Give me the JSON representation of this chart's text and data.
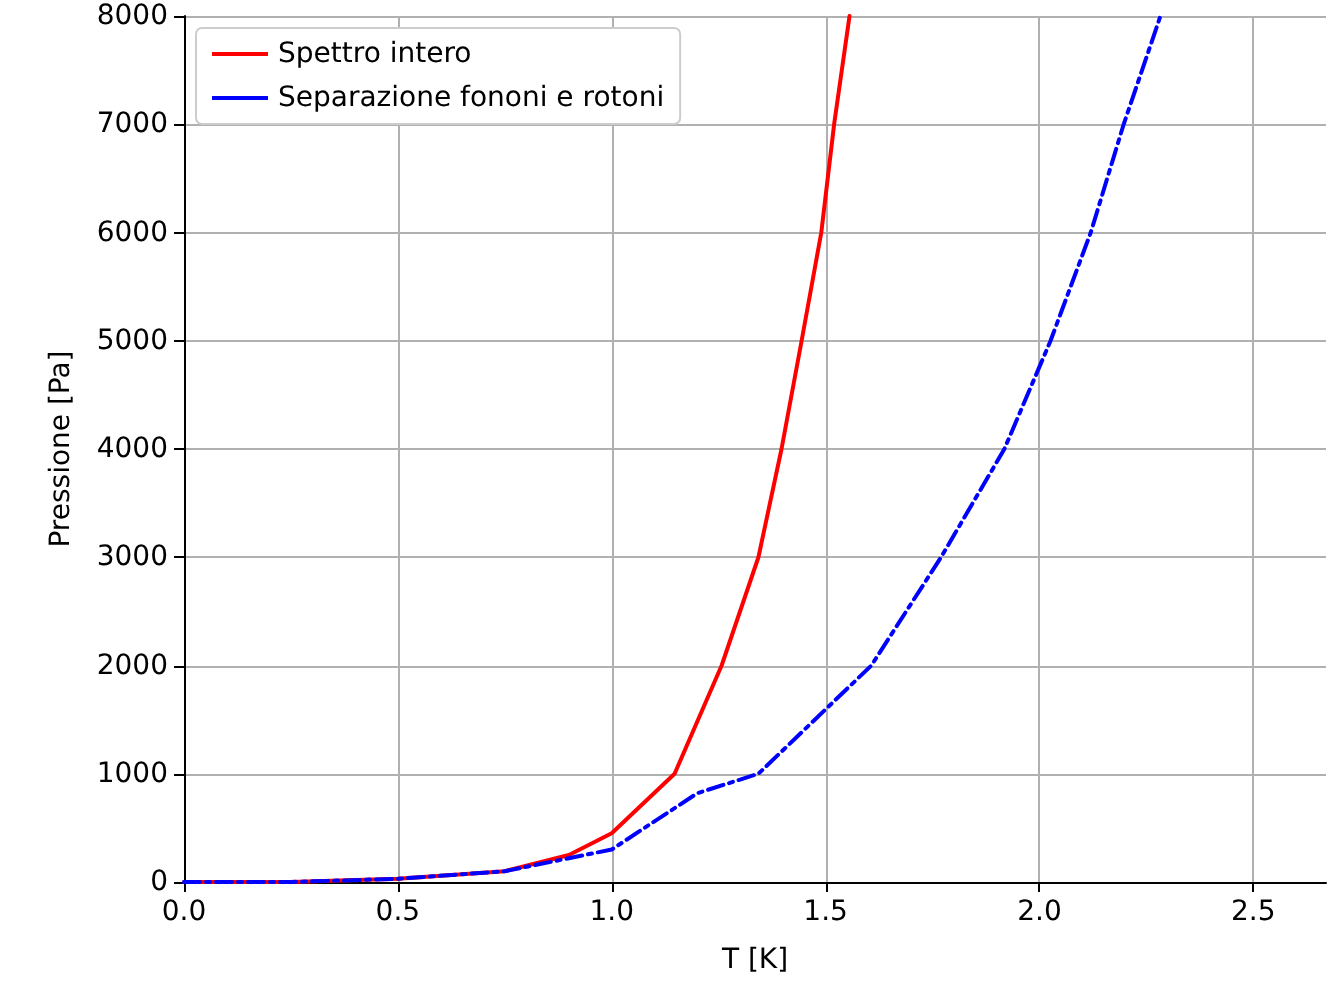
{
  "chart_data": {
    "type": "line",
    "xlabel": "T [K]",
    "ylabel": "Pressione [Pa]",
    "xlim": [
      0,
      2.67
    ],
    "ylim": [
      0,
      8000
    ],
    "xticks": [
      {
        "value": 0,
        "label": "0.0"
      },
      {
        "value": 0.5,
        "label": "0.5"
      },
      {
        "value": 1,
        "label": "1.0"
      },
      {
        "value": 1.5,
        "label": "1.5"
      },
      {
        "value": 2,
        "label": "2.0"
      },
      {
        "value": 2.5,
        "label": "2.5"
      }
    ],
    "yticks": [
      0,
      1000,
      2000,
      3000,
      4000,
      5000,
      6000,
      7000,
      8000
    ],
    "grid": true,
    "legend": "top left",
    "marker": "none",
    "series": [
      {
        "name": "Spettro intero",
        "color": "#ff0000",
        "line_style": "solid",
        "x": [
          0,
          0.25,
          0.5,
          0.75,
          0.9,
          1.0,
          1.147,
          1.257,
          1.343,
          1.397,
          1.444,
          1.49,
          1.52,
          1.556
        ],
        "values": [
          0,
          0,
          30,
          100,
          250,
          450,
          1000,
          2000,
          3000,
          4000,
          5000,
          6000,
          7000,
          8000
        ]
      },
      {
        "name": "Separazione fononi e rotoni",
        "color": "#0000ff",
        "line_style": "dashdot",
        "x": [
          0,
          0.25,
          0.5,
          0.75,
          1.0,
          1.2,
          1.343,
          1.607,
          1.77,
          1.918,
          2.026,
          2.12,
          2.197,
          2.283
        ],
        "values": [
          0,
          0,
          30,
          100,
          300,
          820,
          1000,
          2000,
          3000,
          4000,
          5000,
          6000,
          7000,
          8000
        ]
      }
    ]
  }
}
